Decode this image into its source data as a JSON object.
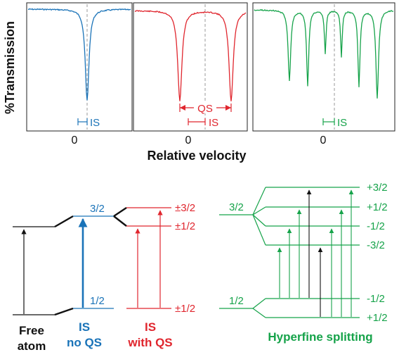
{
  "colors": {
    "blue": "#1a73b8",
    "red": "#e0262e",
    "green": "#16a34a",
    "black": "#111111",
    "dash": "#999999"
  },
  "spectra": {
    "ylabel": "%Transmission",
    "xlabel": "Relative velocity",
    "zero_label": "0",
    "panel1": {
      "is_label": "IS"
    },
    "panel2": {
      "qs_label": "QS",
      "is_label": "IS"
    },
    "panel3": {
      "is_label": "IS"
    }
  },
  "levels": {
    "free_atom": {
      "caption_line1": "Free",
      "caption_line2": "atom"
    },
    "is_no_qs": {
      "upper": "3/2",
      "lower": "1/2",
      "caption_line1": "IS",
      "caption_line2": "no QS"
    },
    "is_with_qs": {
      "upper_a": "±3/2",
      "upper_b": "±1/2",
      "lower": "±1/2",
      "caption_line1": "IS",
      "caption_line2": "with QS"
    },
    "hyperfine": {
      "caption": "Hyperfine splitting",
      "upper_left": "3/2",
      "lower_left": "1/2",
      "upper_sublevels": [
        "+3/2",
        "+1/2",
        "-1/2",
        "-3/2"
      ],
      "lower_sublevels": [
        "-1/2",
        "+1/2"
      ]
    }
  }
}
